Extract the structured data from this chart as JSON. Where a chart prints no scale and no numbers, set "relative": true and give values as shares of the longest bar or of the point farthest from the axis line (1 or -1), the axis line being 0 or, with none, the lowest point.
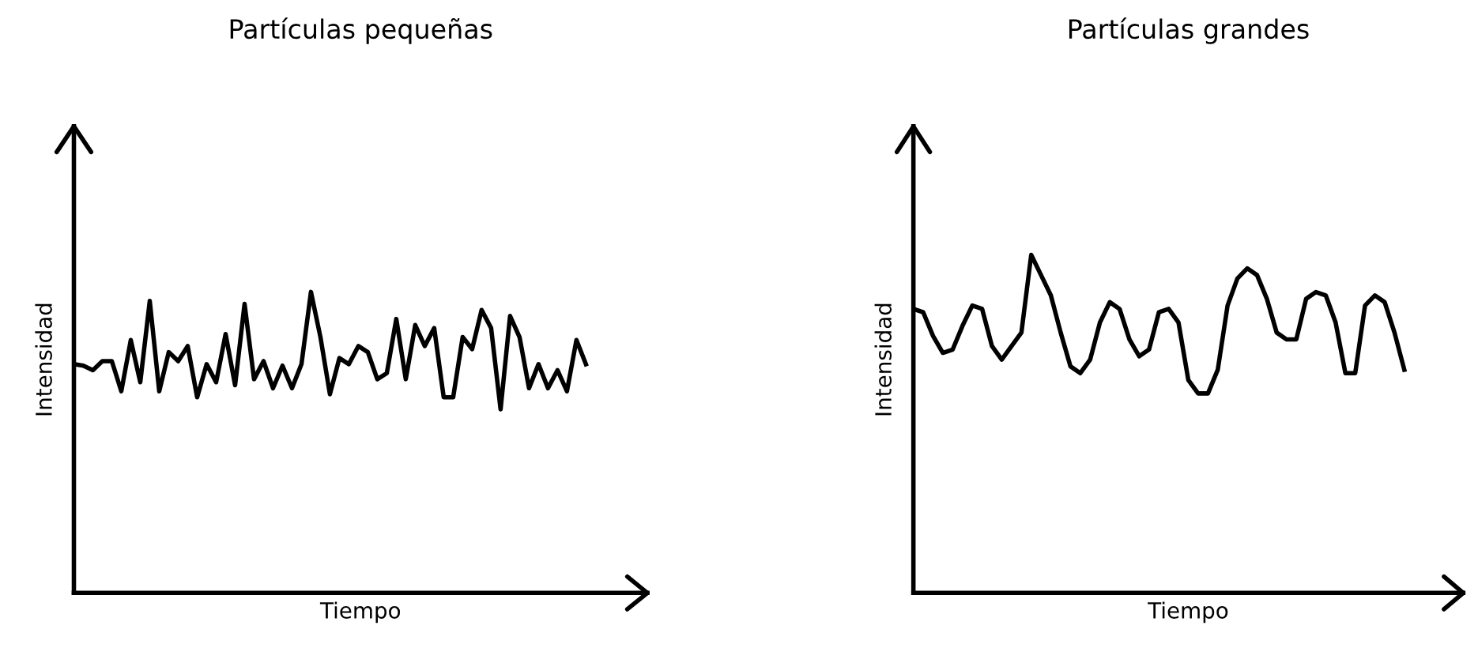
{
  "chart_data": [
    {
      "type": "line",
      "title": "Partículas pequeñas",
      "xlabel": "Tiempo",
      "ylabel": "Intensidad",
      "relative": true,
      "tick_labels": false,
      "grid": false,
      "marker": "none",
      "line_style": "solid",
      "categories": [
        null,
        null,
        null,
        null,
        null,
        null,
        null,
        null,
        null,
        null,
        null,
        null,
        null,
        null,
        null,
        null,
        null,
        null,
        null,
        null,
        null,
        null,
        null,
        null,
        null,
        null,
        null,
        null,
        null,
        null,
        null,
        null,
        null,
        null,
        null,
        null,
        null,
        null,
        null,
        null,
        null,
        null,
        null,
        null,
        null,
        null,
        null,
        null,
        null,
        null,
        null,
        null,
        null,
        null,
        null
      ],
      "series": [
        {
          "color": "#000000",
          "values": [
            0.76,
            0.755,
            0.74,
            0.77,
            0.77,
            0.67,
            0.84,
            0.7,
            0.97,
            0.67,
            0.8,
            0.77,
            0.82,
            0.65,
            0.76,
            0.7,
            0.86,
            0.69,
            0.96,
            0.71,
            0.77,
            0.68,
            0.755,
            0.68,
            0.76,
            1.0,
            0.85,
            0.66,
            0.78,
            0.76,
            0.82,
            0.8,
            0.71,
            0.73,
            0.91,
            0.71,
            0.89,
            0.82,
            0.88,
            0.65,
            0.65,
            0.85,
            0.81,
            0.94,
            0.88,
            0.61,
            0.92,
            0.85,
            0.68,
            0.76,
            0.68,
            0.74,
            0.67,
            0.84,
            0.76
          ]
        }
      ]
    },
    {
      "type": "line",
      "title": "Partículas grandes",
      "xlabel": "Tiempo",
      "ylabel": "Intensidad",
      "relative": true,
      "tick_labels": false,
      "grid": false,
      "marker": "none",
      "line_style": "solid",
      "categories": [
        null,
        null,
        null,
        null,
        null,
        null,
        null,
        null,
        null,
        null,
        null,
        null,
        null,
        null,
        null,
        null,
        null,
        null,
        null,
        null,
        null,
        null,
        null,
        null,
        null,
        null,
        null,
        null,
        null,
        null,
        null,
        null,
        null,
        null,
        null,
        null,
        null,
        null,
        null,
        null,
        null,
        null,
        null,
        null,
        null,
        null,
        null,
        null,
        null,
        null,
        null
      ],
      "series": [
        {
          "color": "#000000",
          "values": [
            0.84,
            0.83,
            0.76,
            0.71,
            0.72,
            0.79,
            0.85,
            0.84,
            0.73,
            0.69,
            0.73,
            0.77,
            1.0,
            0.94,
            0.88,
            0.77,
            0.67,
            0.65,
            0.69,
            0.8,
            0.86,
            0.84,
            0.75,
            0.7,
            0.72,
            0.83,
            0.84,
            0.8,
            0.63,
            0.59,
            0.59,
            0.66,
            0.85,
            0.93,
            0.96,
            0.94,
            0.87,
            0.77,
            0.75,
            0.75,
            0.87,
            0.89,
            0.88,
            0.8,
            0.65,
            0.65,
            0.85,
            0.88,
            0.86,
            0.77,
            0.66
          ]
        }
      ]
    }
  ]
}
